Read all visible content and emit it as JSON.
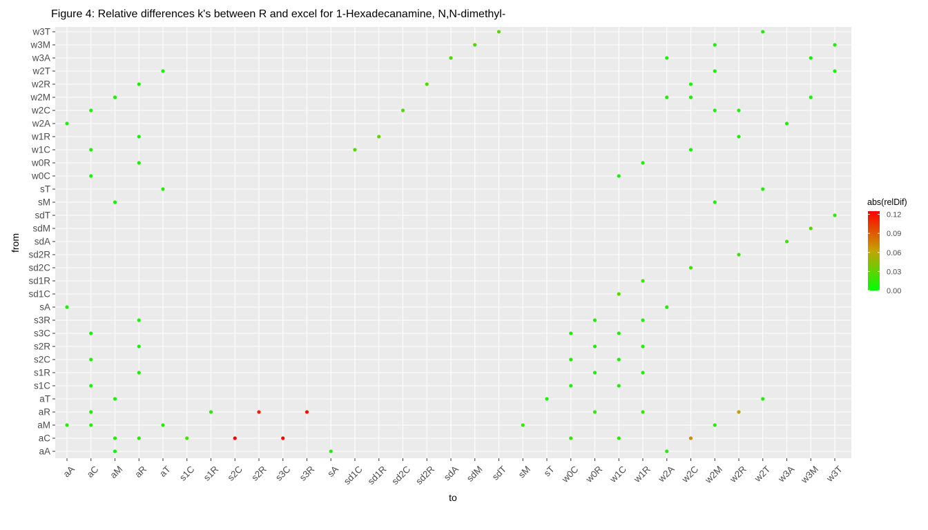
{
  "chart_data": {
    "type": "scatter",
    "title": "Figure 4: Relative differences k's between R and excel for 1-Hexadecanamine, N,N-dimethyl-",
    "xlabel": "to",
    "ylabel": "from",
    "x_categories": [
      "aA",
      "aC",
      "aM",
      "aR",
      "aT",
      "s1C",
      "s1R",
      "s2C",
      "s2R",
      "s3C",
      "s3R",
      "sA",
      "sd1C",
      "sd1R",
      "sd2C",
      "sd2R",
      "sdA",
      "sdM",
      "sdT",
      "sM",
      "sT",
      "w0C",
      "w0R",
      "w1C",
      "w1R",
      "w2A",
      "w2C",
      "w2M",
      "w2R",
      "w2T",
      "w3A",
      "w3M",
      "w3T"
    ],
    "y_categories": [
      "aA",
      "aC",
      "aM",
      "aR",
      "aT",
      "s1C",
      "s1R",
      "s2C",
      "s2R",
      "s3C",
      "s3R",
      "sA",
      "sd1C",
      "sd1R",
      "sd2C",
      "sd2R",
      "sdA",
      "sdM",
      "sdT",
      "sM",
      "sT",
      "w0C",
      "w0R",
      "w1C",
      "w1R",
      "w2A",
      "w2C",
      "w2M",
      "w2R",
      "w2T",
      "w3A",
      "w3M",
      "w3T"
    ],
    "color_scale": {
      "name": "abs(relDif)",
      "min": 0,
      "max": 0.125,
      "low_color": "#00ff00",
      "high_color": "#ff0000",
      "ticks": [
        "0.00",
        "0.03",
        "0.06",
        "0.09",
        "0.12"
      ]
    },
    "grid": true,
    "legend_position": "right",
    "points": [
      {
        "x": "aM",
        "y": "aA",
        "v": 0.003
      },
      {
        "x": "sA",
        "y": "aA",
        "v": 0.01
      },
      {
        "x": "w2A",
        "y": "aA",
        "v": 0.008
      },
      {
        "x": "aM",
        "y": "aC",
        "v": 0.01
      },
      {
        "x": "aR",
        "y": "aC",
        "v": 0.012
      },
      {
        "x": "s1C",
        "y": "aC",
        "v": 0.02
      },
      {
        "x": "s2C",
        "y": "aC",
        "v": 0.125
      },
      {
        "x": "s3C",
        "y": "aC",
        "v": 0.125
      },
      {
        "x": "w0C",
        "y": "aC",
        "v": 0.015
      },
      {
        "x": "w1C",
        "y": "aC",
        "v": 0.012
      },
      {
        "x": "w2C",
        "y": "aC",
        "v": 0.07
      },
      {
        "x": "aA",
        "y": "aM",
        "v": 0.01
      },
      {
        "x": "aC",
        "y": "aM",
        "v": 0.01
      },
      {
        "x": "aT",
        "y": "aM",
        "v": 0.012
      },
      {
        "x": "sM",
        "y": "aM",
        "v": 0.015
      },
      {
        "x": "w2M",
        "y": "aM",
        "v": 0.012
      },
      {
        "x": "aC",
        "y": "aR",
        "v": 0.01
      },
      {
        "x": "s1R",
        "y": "aR",
        "v": 0.015
      },
      {
        "x": "s2R",
        "y": "aR",
        "v": 0.115
      },
      {
        "x": "s3R",
        "y": "aR",
        "v": 0.12
      },
      {
        "x": "w0R",
        "y": "aR",
        "v": 0.015
      },
      {
        "x": "w1R",
        "y": "aR",
        "v": 0.015
      },
      {
        "x": "w2R",
        "y": "aR",
        "v": 0.065
      },
      {
        "x": "aM",
        "y": "aT",
        "v": 0.008
      },
      {
        "x": "sT",
        "y": "aT",
        "v": 0.008
      },
      {
        "x": "w2T",
        "y": "aT",
        "v": 0.008
      },
      {
        "x": "aC",
        "y": "s1C",
        "v": 0.008
      },
      {
        "x": "w0C",
        "y": "s1C",
        "v": 0.012
      },
      {
        "x": "w1C",
        "y": "s1C",
        "v": 0.01
      },
      {
        "x": "aR",
        "y": "s1R",
        "v": 0.008
      },
      {
        "x": "w0R",
        "y": "s1R",
        "v": 0.008
      },
      {
        "x": "w1R",
        "y": "s1R",
        "v": 0.008
      },
      {
        "x": "aC",
        "y": "s2C",
        "v": 0.008
      },
      {
        "x": "w0C",
        "y": "s2C",
        "v": 0.01
      },
      {
        "x": "w1C",
        "y": "s2C",
        "v": 0.01
      },
      {
        "x": "aR",
        "y": "s2R",
        "v": 0.008
      },
      {
        "x": "w0R",
        "y": "s2R",
        "v": 0.008
      },
      {
        "x": "w1R",
        "y": "s2R",
        "v": 0.008
      },
      {
        "x": "aC",
        "y": "s3C",
        "v": 0.008
      },
      {
        "x": "w0C",
        "y": "s3C",
        "v": 0.01
      },
      {
        "x": "w1C",
        "y": "s3C",
        "v": 0.01
      },
      {
        "x": "aR",
        "y": "s3R",
        "v": 0.008
      },
      {
        "x": "w0R",
        "y": "s3R",
        "v": 0.008
      },
      {
        "x": "w1R",
        "y": "s3R",
        "v": 0.008
      },
      {
        "x": "aA",
        "y": "sA",
        "v": 0.008
      },
      {
        "x": "w2A",
        "y": "sA",
        "v": 0.008
      },
      {
        "x": "w1C",
        "y": "sd1C",
        "v": 0.025
      },
      {
        "x": "w1R",
        "y": "sd1R",
        "v": 0.02
      },
      {
        "x": "w2C",
        "y": "sd2C",
        "v": 0.02
      },
      {
        "x": "w2R",
        "y": "sd2R",
        "v": 0.02
      },
      {
        "x": "w3A",
        "y": "sdA",
        "v": 0.02
      },
      {
        "x": "w3M",
        "y": "sdM",
        "v": 0.025
      },
      {
        "x": "w3T",
        "y": "sdT",
        "v": 0.015
      },
      {
        "x": "aM",
        "y": "sM",
        "v": 0.008
      },
      {
        "x": "w2M",
        "y": "sM",
        "v": 0.008
      },
      {
        "x": "aT",
        "y": "sT",
        "v": 0.012
      },
      {
        "x": "w2T",
        "y": "sT",
        "v": 0.008
      },
      {
        "x": "aC",
        "y": "w0C",
        "v": 0.008
      },
      {
        "x": "w1C",
        "y": "w0C",
        "v": 0.008
      },
      {
        "x": "aR",
        "y": "w0R",
        "v": 0.008
      },
      {
        "x": "w1R",
        "y": "w0R",
        "v": 0.008
      },
      {
        "x": "aC",
        "y": "w1C",
        "v": 0.008
      },
      {
        "x": "sd1C",
        "y": "w1C",
        "v": 0.025
      },
      {
        "x": "w2C",
        "y": "w1C",
        "v": 0.008
      },
      {
        "x": "aR",
        "y": "w1R",
        "v": 0.008
      },
      {
        "x": "sd1R",
        "y": "w1R",
        "v": 0.03
      },
      {
        "x": "w2R",
        "y": "w1R",
        "v": 0.008
      },
      {
        "x": "aA",
        "y": "w2A",
        "v": 0.008
      },
      {
        "x": "w3A",
        "y": "w2A",
        "v": 0.008
      },
      {
        "x": "aC",
        "y": "w2C",
        "v": 0.008
      },
      {
        "x": "sd2C",
        "y": "w2C",
        "v": 0.025
      },
      {
        "x": "w2M",
        "y": "w2C",
        "v": 0.008
      },
      {
        "x": "w2R",
        "y": "w2C",
        "v": 0.008
      },
      {
        "x": "aM",
        "y": "w2M",
        "v": 0.008
      },
      {
        "x": "w2A",
        "y": "w2M",
        "v": 0.008
      },
      {
        "x": "w2C",
        "y": "w2M",
        "v": 0.008
      },
      {
        "x": "w3M",
        "y": "w2M",
        "v": 0.008
      },
      {
        "x": "aR",
        "y": "w2R",
        "v": 0.008
      },
      {
        "x": "sd2R",
        "y": "w2R",
        "v": 0.03
      },
      {
        "x": "w2C",
        "y": "w2R",
        "v": 0.008
      },
      {
        "x": "aT",
        "y": "w2T",
        "v": 0.008
      },
      {
        "x": "w2M",
        "y": "w2T",
        "v": 0.008
      },
      {
        "x": "w3T",
        "y": "w2T",
        "v": 0.008
      },
      {
        "x": "sdA",
        "y": "w3A",
        "v": 0.025
      },
      {
        "x": "w2A",
        "y": "w3A",
        "v": 0.008
      },
      {
        "x": "w3M",
        "y": "w3A",
        "v": 0.008
      },
      {
        "x": "sdM",
        "y": "w3M",
        "v": 0.025
      },
      {
        "x": "w2M",
        "y": "w3M",
        "v": 0.008
      },
      {
        "x": "w3T",
        "y": "w3M",
        "v": 0.008
      },
      {
        "x": "sdT",
        "y": "w3T",
        "v": 0.03
      },
      {
        "x": "w2T",
        "y": "w3T",
        "v": 0.008
      }
    ]
  }
}
